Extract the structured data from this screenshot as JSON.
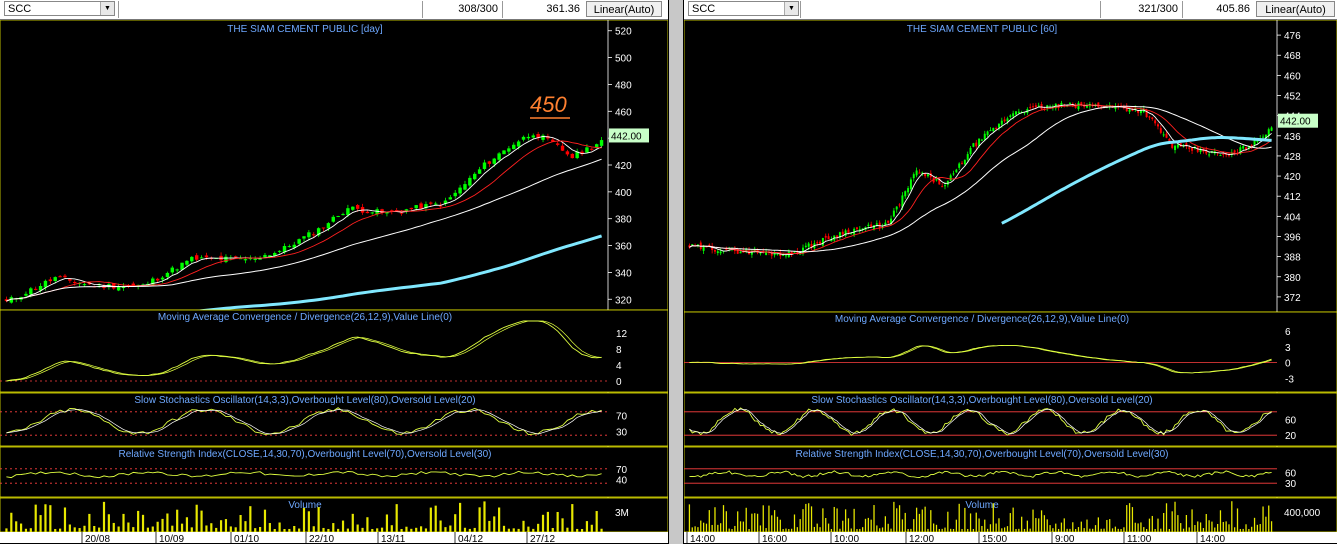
{
  "left": {
    "symbol": "SCC",
    "count": "308/300",
    "last_value": "361.36",
    "scale_mode": "Linear(Auto)",
    "price_title": "THE SIAM CEMENT PUBLIC [day]",
    "price_tag": "442.00",
    "annotation": "450",
    "macd_title": "Moving Average Convergence / Divergence(26,12,9),Value Line(0)",
    "stoch_title": "Slow Stochastics Oscillator(14,3,3),Overbought Level(80),Oversold Level(20)",
    "rsi_title": "Relative Strength Index(CLOSE,14,30,70),Overbought Level(70),Oversold Level(30)",
    "volume_title": "Volume"
  },
  "right": {
    "symbol": "SCC",
    "count": "321/300",
    "last_value": "405.86",
    "scale_mode": "Linear(Auto)",
    "price_title": "THE SIAM CEMENT PUBLIC [60]",
    "price_tag": "442.00",
    "macd_title": "Moving Average Convergence / Divergence(26,12,9),Value Line(0)",
    "stoch_title": "Slow Stochastics Oscillator(14,3,3),Overbought Level(80),Oversold Level(20)",
    "rsi_title": "Relative Strength Index(CLOSE,14,30,70),Overbought Level(70),Oversold Level(30)",
    "volume_title": "Volume"
  },
  "colors": {
    "up": "#00ff00",
    "down": "#ff0000",
    "ma_fast": "#ffffff",
    "ma_mid": "#ff2020",
    "ma_slow": "#ffffff",
    "ma_long": "#80e8ff",
    "osc_line": "#e0ff40",
    "signal": "#ffffff",
    "title_text": "#6ea8ff",
    "axis_text": "#ffffff",
    "level_line": "#ff4040",
    "annotation": "#ff8030",
    "price_tag_bg": "#c8ffc8"
  },
  "chart_data": [
    {
      "type": "candlestick",
      "title": "THE SIAM CEMENT PUBLIC [day]",
      "ylim": [
        312,
        528
      ],
      "y_ticks": [
        320,
        340,
        360,
        380,
        400,
        420,
        440,
        460,
        480,
        500,
        520
      ],
      "x_tick_labels": [
        "20/08",
        "10/09",
        "01/10",
        "22/10",
        "13/11",
        "04/12",
        "27/12"
      ],
      "close_anchors": [
        [
          0,
          318
        ],
        [
          10,
          336
        ],
        [
          18,
          330
        ],
        [
          28,
          330
        ],
        [
          38,
          350
        ],
        [
          50,
          350
        ],
        [
          56,
          356
        ],
        [
          64,
          372
        ],
        [
          70,
          388
        ],
        [
          78,
          384
        ],
        [
          90,
          392
        ],
        [
          98,
          420
        ],
        [
          104,
          436
        ],
        [
          108,
          444
        ],
        [
          112,
          436
        ],
        [
          116,
          426
        ],
        [
          122,
          438
        ]
      ],
      "n_bars": 123,
      "volume_ylabel": "3M",
      "oscillators": [
        {
          "name": "MACD",
          "y_ticks": [
            0,
            4,
            8,
            12
          ],
          "ylim": [
            -2,
            15
          ],
          "value_line": 0
        },
        {
          "name": "Slow Stochastics",
          "y_ticks": [
            30,
            70
          ],
          "levels": [
            80,
            20
          ]
        },
        {
          "name": "RSI",
          "y_ticks": [
            40,
            70
          ],
          "levels": [
            70,
            30
          ]
        }
      ]
    },
    {
      "type": "candlestick",
      "title": "THE SIAM CEMENT PUBLIC [60]",
      "ylim": [
        366,
        482
      ],
      "y_ticks": [
        372,
        380,
        388,
        396,
        404,
        412,
        420,
        428,
        436,
        444,
        452,
        460,
        468,
        476
      ],
      "x_tick_labels": [
        "14:00",
        "16:00",
        "10:00",
        "12:00",
        "15:00",
        "9:00",
        "11:00",
        "14:00"
      ],
      "close_anchors": [
        [
          0,
          392
        ],
        [
          20,
          390
        ],
        [
          35,
          389
        ],
        [
          55,
          398
        ],
        [
          70,
          401
        ],
        [
          80,
          422
        ],
        [
          90,
          416
        ],
        [
          100,
          432
        ],
        [
          115,
          446
        ],
        [
          130,
          448
        ],
        [
          145,
          448
        ],
        [
          160,
          446
        ],
        [
          170,
          432
        ],
        [
          190,
          428
        ],
        [
          200,
          434
        ],
        [
          205,
          440
        ]
      ],
      "n_bars": 206,
      "volume_ylabel": "400,000",
      "oscillators": [
        {
          "name": "MACD",
          "y_ticks": [
            -3,
            0,
            3,
            6
          ],
          "ylim": [
            -5,
            7.5
          ],
          "value_line": 0
        },
        {
          "name": "Slow Stochastics",
          "y_ticks": [
            20,
            60
          ],
          "levels": [
            80,
            20
          ]
        },
        {
          "name": "RSI",
          "y_ticks": [
            30,
            60
          ],
          "levels": [
            70,
            30
          ]
        }
      ]
    }
  ]
}
